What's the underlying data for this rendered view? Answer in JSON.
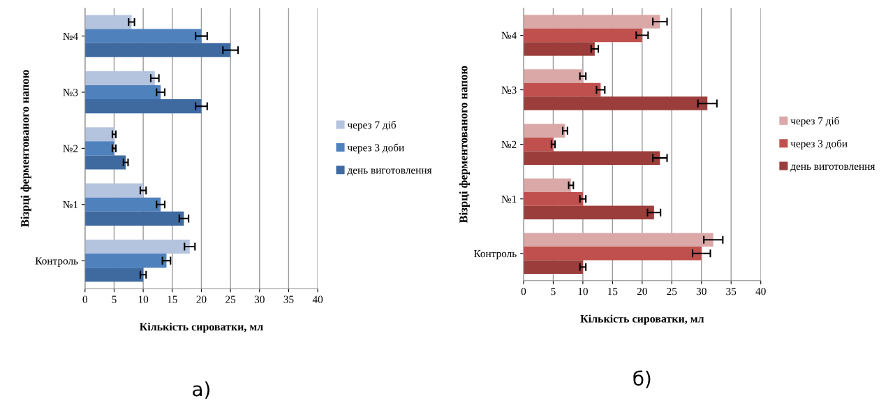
{
  "chart_data": [
    {
      "type": "bar",
      "orientation": "horizontal",
      "xlabel": "Кількість сироватки, мл",
      "ylabel": "Візрці ферментованого напою",
      "categories": [
        "№4",
        "№3",
        "№2",
        "№1",
        "Контроль"
      ],
      "xlim": [
        0,
        40
      ],
      "xticks": [
        0,
        5,
        10,
        15,
        20,
        25,
        30,
        35,
        40
      ],
      "grid": "x",
      "legend": "right",
      "annotations": [
        "а)"
      ],
      "series": [
        {
          "name": "через 7 діб",
          "color": "#b4c3de",
          "values": [
            8,
            12,
            5,
            10,
            18
          ],
          "errors": [
            0.5,
            0.7,
            0.3,
            0.5,
            0.9
          ]
        },
        {
          "name": "через 3 доби",
          "color": "#4f81bd",
          "values": [
            20,
            13,
            5,
            13,
            14
          ],
          "errors": [
            1,
            0.7,
            0.3,
            0.7,
            0.7
          ]
        },
        {
          "name": "день виготовлення",
          "color": "#3e6aa0",
          "values": [
            25,
            20,
            7,
            17,
            10
          ],
          "errors": [
            1.3,
            1,
            0.4,
            0.8,
            0.5
          ]
        }
      ]
    },
    {
      "type": "bar",
      "orientation": "horizontal",
      "xlabel": "Кількість сироватки, мл",
      "ylabel": "Візрці ферментованого напою",
      "categories": [
        "№4",
        "№3",
        "№2",
        "№1",
        "Контроль"
      ],
      "xlim": [
        0,
        40
      ],
      "xticks": [
        0,
        5,
        10,
        15,
        20,
        25,
        30,
        35,
        40
      ],
      "grid": "x",
      "legend": "right",
      "annotations": [
        "б)"
      ],
      "series": [
        {
          "name": "через 7 діб",
          "color": "#dba8a8",
          "values": [
            23,
            10,
            7,
            8,
            32
          ],
          "errors": [
            1.2,
            0.5,
            0.4,
            0.4,
            1.6
          ]
        },
        {
          "name": "через 3 доби",
          "color": "#c0504d",
          "values": [
            20,
            13,
            5,
            10,
            30
          ],
          "errors": [
            1,
            0.7,
            0.3,
            0.5,
            1.5
          ]
        },
        {
          "name": "день виготовлення",
          "color": "#9b3d3b",
          "values": [
            12,
            31,
            23,
            22,
            10
          ],
          "errors": [
            0.6,
            1.6,
            1.2,
            1.1,
            0.5
          ]
        }
      ]
    }
  ]
}
